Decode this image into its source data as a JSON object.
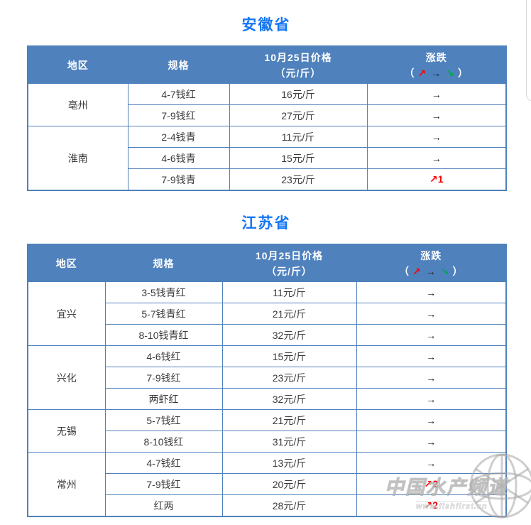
{
  "watermark": {
    "title": "中国水产频道",
    "url": "www.fishfirst.cn"
  },
  "colors": {
    "header_bg": "#4f81bd",
    "table_border": "#4f81bd",
    "province_title": "#1476f2",
    "trend_up": "#ff0000",
    "trend_flat": "#1a1a1a",
    "trend_down": "#00a650"
  },
  "tables": [
    {
      "province": "安徽省",
      "headers": {
        "region": "地区",
        "spec": "规格",
        "price_line1": "10月25日价格",
        "price_line2": "（元/斤）",
        "change": "涨跌",
        "legend": {
          "open": "（",
          "up": "↗",
          "flat": "→",
          "down": "↘",
          "close": "）"
        }
      },
      "groups": [
        {
          "region": "亳州",
          "rows": [
            {
              "spec": "4-7钱红",
              "price": "16元/斤",
              "arrow": "→",
              "value": "",
              "trend": "flat"
            },
            {
              "spec": "7-9钱红",
              "price": "27元/斤",
              "arrow": "→",
              "value": "",
              "trend": "flat"
            }
          ]
        },
        {
          "region": "淮南",
          "rows": [
            {
              "spec": "2-4钱青",
              "price": "11元/斤",
              "arrow": "→",
              "value": "",
              "trend": "flat"
            },
            {
              "spec": "4-6钱青",
              "price": "15元/斤",
              "arrow": "→",
              "value": "",
              "trend": "flat"
            },
            {
              "spec": "7-9钱青",
              "price": "23元/斤",
              "arrow": "↗",
              "value": "1",
              "trend": "up"
            }
          ]
        }
      ]
    },
    {
      "province": "江苏省",
      "headers": {
        "region": "地区",
        "spec": "规格",
        "price_line1": "10月25日价格",
        "price_line2": "（元/斤）",
        "change": "涨跌",
        "legend": {
          "open": "（",
          "up": "↗",
          "flat": "→",
          "down": "↘",
          "close": "）"
        }
      },
      "groups": [
        {
          "region": "宜兴",
          "rows": [
            {
              "spec": "3-5钱青红",
              "price": "11元/斤",
              "arrow": "→",
              "value": "",
              "trend": "flat"
            },
            {
              "spec": "5-7钱青红",
              "price": "21元/斤",
              "arrow": "→",
              "value": "",
              "trend": "flat"
            },
            {
              "spec": "8-10钱青红",
              "price": "32元/斤",
              "arrow": "→",
              "value": "",
              "trend": "flat"
            }
          ]
        },
        {
          "region": "兴化",
          "rows": [
            {
              "spec": "4-6钱红",
              "price": "15元/斤",
              "arrow": "→",
              "value": "",
              "trend": "flat"
            },
            {
              "spec": "7-9钱红",
              "price": "23元/斤",
              "arrow": "→",
              "value": "",
              "trend": "flat"
            },
            {
              "spec": "两虾红",
              "price": "32元/斤",
              "arrow": "→",
              "value": "",
              "trend": "flat"
            }
          ]
        },
        {
          "region": "无锡",
          "rows": [
            {
              "spec": "5-7钱红",
              "price": "21元/斤",
              "arrow": "→",
              "value": "",
              "trend": "flat"
            },
            {
              "spec": "8-10钱红",
              "price": "31元/斤",
              "arrow": "→",
              "value": "",
              "trend": "flat"
            }
          ]
        },
        {
          "region": "常州",
          "rows": [
            {
              "spec": "4-7钱红",
              "price": "13元/斤",
              "arrow": "→",
              "value": "",
              "trend": "flat"
            },
            {
              "spec": "7-9钱红",
              "price": "20元/斤",
              "arrow": "↗",
              "value": "2",
              "trend": "up"
            },
            {
              "spec": "红两",
              "price": "28元/斤",
              "arrow": "↗",
              "value": "2",
              "trend": "up"
            }
          ]
        }
      ]
    }
  ]
}
